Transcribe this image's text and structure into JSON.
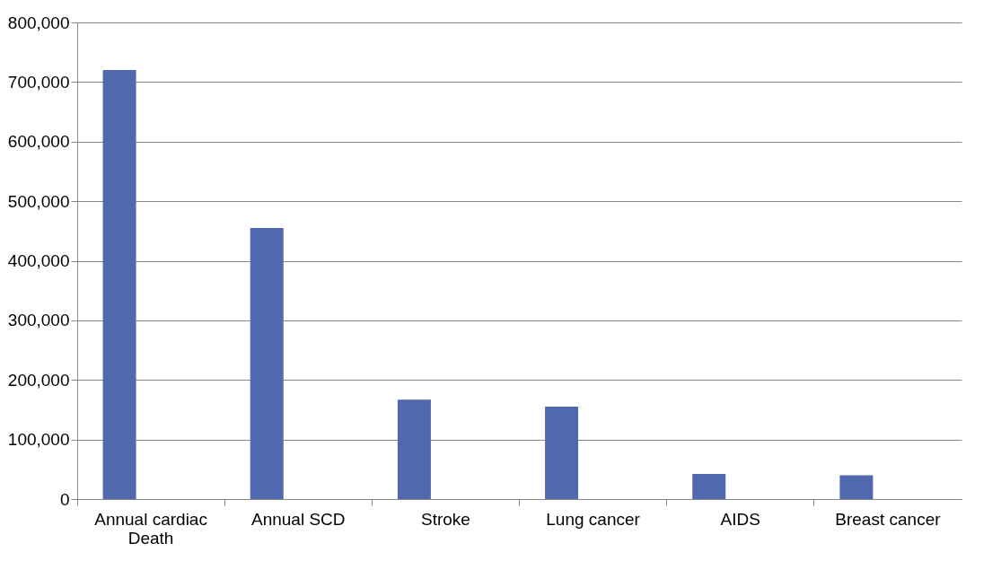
{
  "chart_data": {
    "type": "bar",
    "categories": [
      "Annual cardiac Death",
      "Annual SCD",
      "Stroke",
      "Lung cancer",
      "AIDS",
      "Breast cancer"
    ],
    "values": [
      720000,
      455000,
      167000,
      155000,
      42000,
      40000
    ],
    "color": "#5068ad",
    "ylim": [
      0,
      800000
    ],
    "yticks": [
      0,
      {
        "value": 100000,
        "label": "100,000"
      },
      {
        "value": 200000,
        "label": "200,000"
      },
      {
        "value": 300000,
        "label": "300,000"
      },
      {
        "value": 400000,
        "label": "400,000"
      },
      {
        "value": 500000,
        "label": "500,000"
      },
      {
        "value": 600000,
        "label": "600,000"
      },
      {
        "value": 700000,
        "label": "700,000"
      },
      {
        "value": 800000,
        "label": "800,000"
      }
    ],
    "grid": "y"
  }
}
